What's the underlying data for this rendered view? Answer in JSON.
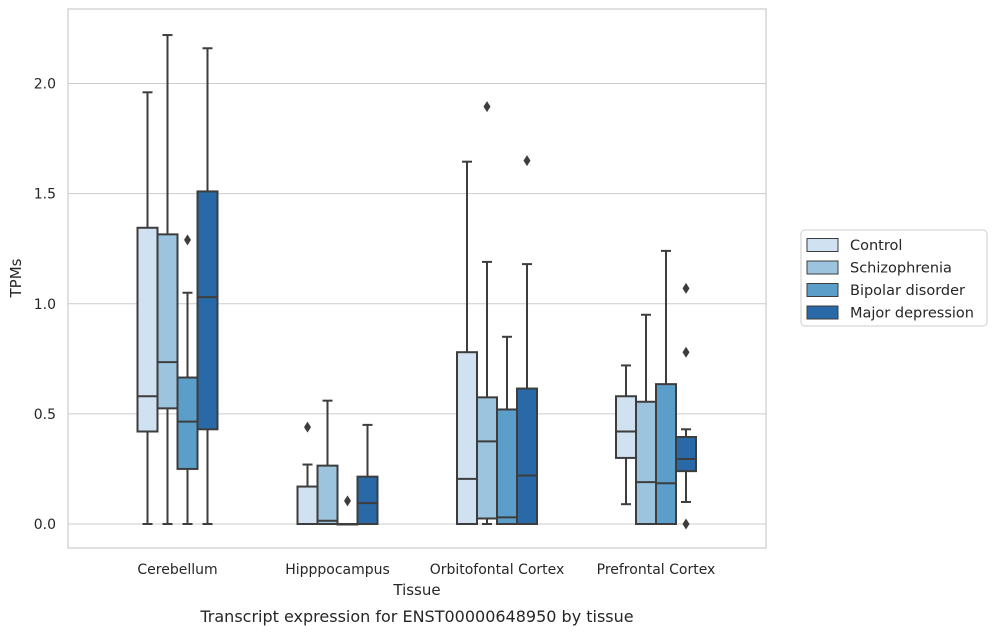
{
  "caption": "Transcript expression for ENST00000648950 by tissue",
  "chart_data": {
    "type": "box",
    "xlabel": "Tissue",
    "ylabel": "TPMs",
    "ylim": [
      -0.11,
      2.35
    ],
    "yticks": [
      "0.0",
      "0.5",
      "1.0",
      "1.5",
      "2.0"
    ],
    "grid": "horizontal",
    "legend_position": "right",
    "categories": [
      "Cerebellum",
      "Hipppocampus",
      "Orbitofontal Cortex",
      "Prefrontal Cortex"
    ],
    "series": [
      {
        "name": "Control",
        "color": "#d0e1f1",
        "boxes": [
          {
            "min": 0.0,
            "q1": 0.42,
            "median": 0.58,
            "q3": 1.345,
            "max": 1.96,
            "outliers": []
          },
          {
            "min": 0.0,
            "q1": 0.0,
            "median": 0.0,
            "q3": 0.17,
            "max": 0.27,
            "outliers": [
              0.44
            ]
          },
          {
            "min": 0.0,
            "q1": 0.0,
            "median": 0.205,
            "q3": 0.78,
            "max": 1.645,
            "outliers": []
          },
          {
            "min": 0.09,
            "q1": 0.3,
            "median": 0.42,
            "q3": 0.58,
            "max": 0.72,
            "outliers": []
          }
        ]
      },
      {
        "name": "Schizophrenia",
        "color": "#9cc4de",
        "boxes": [
          {
            "min": 0.0,
            "q1": 0.525,
            "median": 0.735,
            "q3": 1.315,
            "max": 2.22,
            "outliers": []
          },
          {
            "min": 0.0,
            "q1": 0.0,
            "median": 0.015,
            "q3": 0.265,
            "max": 0.56,
            "outliers": []
          },
          {
            "min": 0.0,
            "q1": 0.025,
            "median": 0.375,
            "q3": 0.575,
            "max": 1.19,
            "outliers": [
              1.895
            ]
          },
          {
            "min": 0.0,
            "q1": 0.0,
            "median": 0.19,
            "q3": 0.555,
            "max": 0.95,
            "outliers": []
          }
        ]
      },
      {
        "name": "Bipolar disorder",
        "color": "#5b9ec9",
        "boxes": [
          {
            "min": 0.0,
            "q1": 0.25,
            "median": 0.465,
            "q3": 0.665,
            "max": 1.05,
            "outliers": [
              1.29
            ]
          },
          {
            "min": 0.0,
            "q1": 0.0,
            "median": 0.0,
            "q3": 0.0,
            "max": 0.0,
            "outliers": [
              0.105
            ]
          },
          {
            "min": 0.0,
            "q1": 0.0,
            "median": 0.03,
            "q3": 0.52,
            "max": 0.85,
            "outliers": []
          },
          {
            "min": 0.0,
            "q1": 0.0,
            "median": 0.185,
            "q3": 0.635,
            "max": 1.24,
            "outliers": []
          }
        ]
      },
      {
        "name": "Major depression",
        "color": "#2a69a8",
        "boxes": [
          {
            "min": 0.0,
            "q1": 0.43,
            "median": 1.03,
            "q3": 1.51,
            "max": 2.16,
            "outliers": []
          },
          {
            "min": 0.0,
            "q1": 0.0,
            "median": 0.095,
            "q3": 0.215,
            "max": 0.45,
            "outliers": []
          },
          {
            "min": 0.0,
            "q1": 0.0,
            "median": 0.22,
            "q3": 0.615,
            "max": 1.18,
            "outliers": [
              1.65
            ]
          },
          {
            "min": 0.1,
            "q1": 0.24,
            "median": 0.295,
            "q3": 0.395,
            "max": 0.43,
            "outliers": [
              1.07,
              0.78,
              0.0
            ]
          }
        ]
      }
    ]
  }
}
